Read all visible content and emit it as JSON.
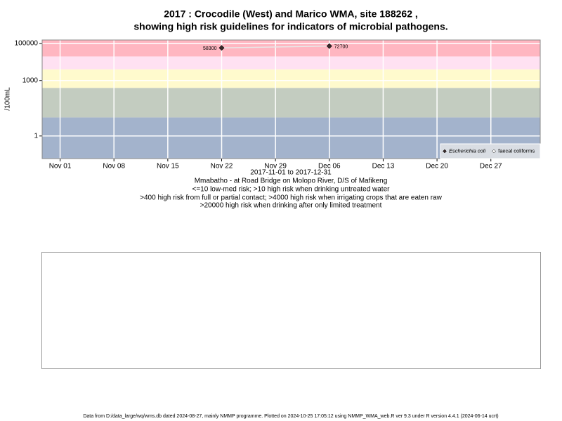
{
  "chart_data": {
    "type": "line",
    "title": [
      "2017 : Crocodile (West) and Marico WMA, site 188262 ,",
      "showing high risk guidelines for indicators of microbial pathogens."
    ],
    "subtitle": [
      "2017-11-01 to 2017-12-31",
      "Mmabatho - at Road Bridge on Molopo River, D/S of Mafikeng",
      "<=10 low-med risk; >10 high risk when drinking untreated water",
      ">400 high risk from full or partial contact; >4000 high risk when irrigating crops that are eaten raw",
      ">20000 high risk when drinking after only limited treatment"
    ],
    "ylabel": "/100mL",
    "footer": "Data from D:/data_large/wq/wms.db dated 2024-08-27, mainly NMMP programme. Plotted on 2024-10-25 17:05:12 using NMMP_WMA_web.R ver 9.3 under R version 4.4.1 (2024-06-14 ucrt)",
    "log_y": true,
    "grid": true,
    "ylim": [
      0.06,
      155000
    ],
    "yticks": [
      1,
      1000,
      100000
    ],
    "xlim": [
      "2017-10-29T16:00",
      "2018-01-02T10:00"
    ],
    "xticks": [
      {
        "value": "2017-11-01",
        "label": "Nov 01"
      },
      {
        "value": "2017-11-08",
        "label": "Nov 08"
      },
      {
        "value": "2017-11-15",
        "label": "Nov 15"
      },
      {
        "value": "2017-11-22",
        "label": "Nov 22"
      },
      {
        "value": "2017-11-29",
        "label": "Nov 29"
      },
      {
        "value": "2017-12-06",
        "label": "Dec 06"
      },
      {
        "value": "2017-12-13",
        "label": "Dec 13"
      },
      {
        "value": "2017-12-20",
        "label": "Dec 20"
      },
      {
        "value": "2017-12-27",
        "label": "Dec 27"
      }
    ],
    "bands": [
      {
        "from": 0.06,
        "to": 10,
        "color": "#a3b3cc"
      },
      {
        "from": 10,
        "to": 400,
        "color": "#c3ccc0"
      },
      {
        "from": 400,
        "to": 4000,
        "color": "#fffacd"
      },
      {
        "from": 4000,
        "to": 20000,
        "color": "#ffe1f2"
      },
      {
        "from": 20000,
        "to": 155000,
        "color": "#ffb6c1"
      }
    ],
    "x": [
      "2017-11-22",
      "2017-12-06"
    ],
    "series": [
      {
        "name": "Escherichia coli",
        "color": "#3a2a2a",
        "values": [
          58300,
          72700
        ]
      },
      {
        "name": "faecal coliforms",
        "color": "#ffffff",
        "values": [
          null,
          null
        ]
      }
    ],
    "legend": "bottom right"
  }
}
